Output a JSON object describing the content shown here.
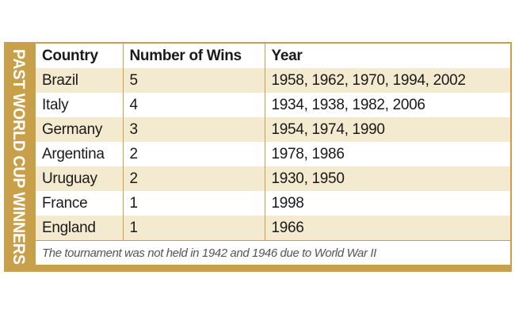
{
  "side_title": "PAST WORLD CUP WINNERS",
  "headers": {
    "country": "Country",
    "wins": "Number of Wins",
    "year": "Year"
  },
  "rows": [
    {
      "country": "Brazil",
      "wins": "5",
      "years": "1958, 1962, 1970, 1994, 2002"
    },
    {
      "country": "Italy",
      "wins": "4",
      "years": "1934, 1938, 1982, 2006"
    },
    {
      "country": "Germany",
      "wins": "3",
      "years": "1954, 1974, 1990"
    },
    {
      "country": "Argentina",
      "wins": "2",
      "years": "1978, 1986"
    },
    {
      "country": "Uruguay",
      "wins": "2",
      "years": "1930, 1950"
    },
    {
      "country": "France",
      "wins": "1",
      "years": "1998"
    },
    {
      "country": "England",
      "wins": "1",
      "years": "1966"
    }
  ],
  "footnote": "The tournament was not held in 1942 and 1946 due to World War II",
  "colors": {
    "frame": "#c9a04a",
    "stripe": "#f4ead0",
    "side_text": "#ffffff"
  }
}
